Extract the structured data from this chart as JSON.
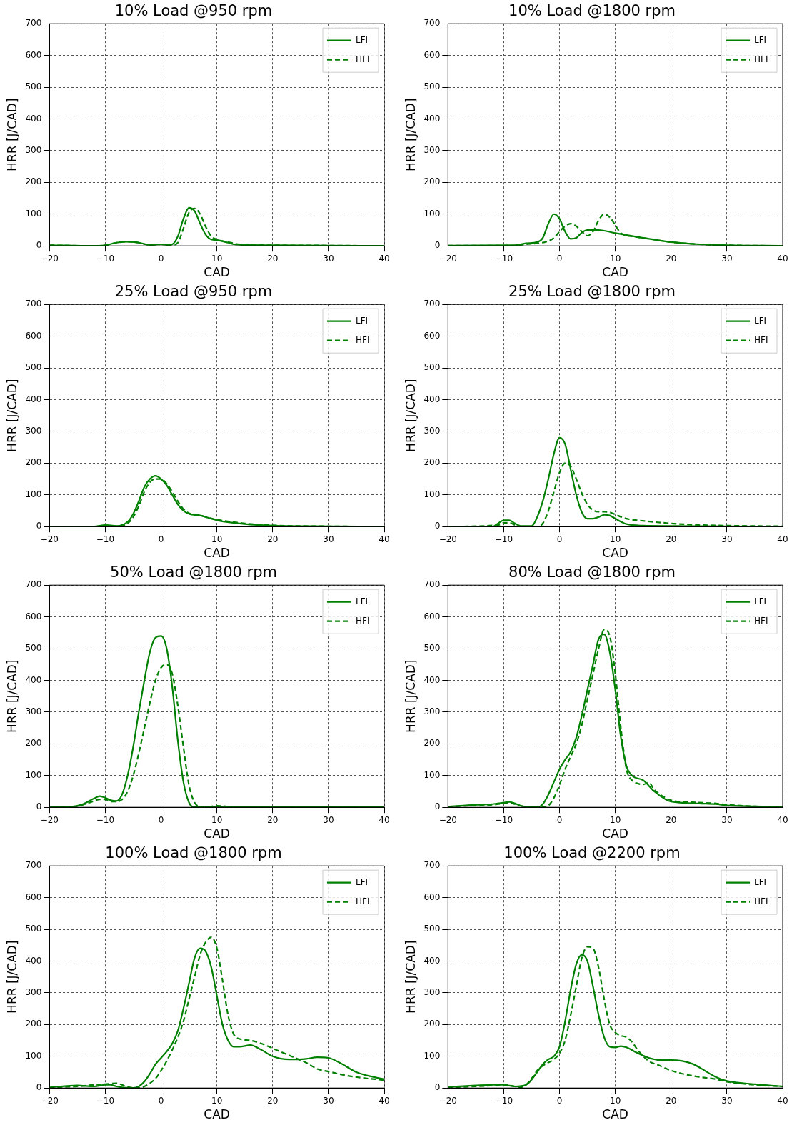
{
  "chart_data": [
    {
      "type": "line",
      "title": "10% Load @950 rpm",
      "xlabel": "CAD",
      "ylabel": "HRR [J/CAD]",
      "xlim": [
        -20,
        40
      ],
      "xticks": [
        -20,
        -10,
        0,
        10,
        20,
        30,
        40
      ],
      "ylim": [
        0,
        700
      ],
      "yticks": [
        0,
        100,
        200,
        300,
        400,
        500,
        600,
        700
      ],
      "grid": true,
      "legend": "top right",
      "series": [
        {
          "name": "LFI",
          "color": "#008000",
          "line_style": "solid",
          "x": [
            -20,
            -12,
            -10,
            -8,
            -6,
            -4,
            -2,
            0,
            1,
            2,
            3,
            4,
            5,
            6,
            7,
            8,
            9,
            10,
            12,
            13,
            15,
            20,
            30,
            40
          ],
          "values": [
            2,
            0,
            2,
            10,
            13,
            10,
            3,
            5,
            3,
            5,
            30,
            85,
            120,
            110,
            70,
            35,
            20,
            18,
            10,
            5,
            3,
            2,
            1,
            0
          ]
        },
        {
          "name": "HFI",
          "color": "#008000",
          "line_style": "dashed",
          "x": [
            -20,
            -12,
            -10,
            -8,
            -6,
            -4,
            -2,
            0,
            2,
            3,
            4,
            5,
            6,
            7,
            8,
            9,
            10,
            12,
            14,
            20,
            30,
            40
          ],
          "values": [
            2,
            0,
            2,
            10,
            13,
            10,
            3,
            5,
            3,
            10,
            55,
            105,
            118,
            100,
            60,
            30,
            20,
            12,
            5,
            2,
            1,
            0
          ]
        }
      ]
    },
    {
      "type": "line",
      "title": "10% Load @1800 rpm",
      "xlabel": "CAD",
      "ylabel": "HRR [J/CAD]",
      "xlim": [
        -20,
        40
      ],
      "xticks": [
        -20,
        -10,
        0,
        10,
        20,
        30,
        40
      ],
      "ylim": [
        0,
        700
      ],
      "yticks": [
        0,
        100,
        200,
        300,
        400,
        500,
        600,
        700
      ],
      "grid": true,
      "legend": "top right",
      "series": [
        {
          "name": "LFI",
          "color": "#008000",
          "line_style": "solid",
          "x": [
            -20,
            -8,
            -6,
            -4,
            -3,
            -2,
            -1,
            0,
            1,
            2,
            3,
            4,
            5,
            7,
            10,
            15,
            20,
            25,
            30,
            40
          ],
          "values": [
            1,
            2,
            8,
            12,
            25,
            70,
            100,
            85,
            45,
            22,
            25,
            42,
            50,
            50,
            40,
            25,
            12,
            5,
            2,
            0
          ]
        },
        {
          "name": "HFI",
          "color": "#008000",
          "line_style": "dashed",
          "x": [
            -20,
            -8,
            -6,
            -4,
            -2,
            -1,
            0,
            1,
            2,
            3,
            4,
            5,
            6,
            7,
            8,
            9,
            10,
            11,
            13,
            15,
            20,
            25,
            30,
            40
          ],
          "values": [
            1,
            1,
            5,
            8,
            15,
            25,
            45,
            62,
            70,
            62,
            45,
            32,
            45,
            80,
            100,
            90,
            65,
            40,
            30,
            25,
            12,
            5,
            2,
            0
          ]
        }
      ]
    },
    {
      "type": "line",
      "title": "25% Load @950 rpm",
      "xlabel": "CAD",
      "ylabel": "HRR [J/CAD]",
      "xlim": [
        -20,
        40
      ],
      "xticks": [
        -20,
        -10,
        0,
        10,
        20,
        30,
        40
      ],
      "ylim": [
        0,
        700
      ],
      "yticks": [
        0,
        100,
        200,
        300,
        400,
        500,
        600,
        700
      ],
      "grid": true,
      "legend": "top right",
      "series": [
        {
          "name": "LFI",
          "color": "#008000",
          "line_style": "solid",
          "x": [
            -20,
            -12,
            -10,
            -8,
            -6,
            -5,
            -4,
            -3,
            -2,
            -1,
            0,
            1,
            2,
            3,
            4,
            5,
            7,
            10,
            15,
            20,
            30,
            40
          ],
          "values": [
            0,
            0,
            5,
            2,
            15,
            40,
            80,
            125,
            150,
            160,
            150,
            130,
            100,
            70,
            50,
            40,
            35,
            20,
            8,
            3,
            1,
            0
          ]
        },
        {
          "name": "HFI",
          "color": "#008000",
          "line_style": "dashed",
          "x": [
            -20,
            -12,
            -10,
            -8,
            -6,
            -5,
            -4,
            -3,
            -2,
            -1,
            0,
            1,
            2,
            3,
            4,
            5,
            7,
            10,
            15,
            20,
            30,
            40
          ],
          "values": [
            0,
            0,
            4,
            1,
            10,
            30,
            65,
            110,
            140,
            150,
            150,
            135,
            110,
            80,
            55,
            42,
            35,
            22,
            10,
            4,
            1,
            0
          ]
        }
      ]
    },
    {
      "type": "line",
      "title": "25% Load @1800 rpm",
      "xlabel": "CAD",
      "ylabel": "HRR [J/CAD]",
      "xlim": [
        -20,
        40
      ],
      "xticks": [
        -20,
        -10,
        0,
        10,
        20,
        30,
        40
      ],
      "ylim": [
        0,
        700
      ],
      "yticks": [
        0,
        100,
        200,
        300,
        400,
        500,
        600,
        700
      ],
      "grid": true,
      "legend": "top right",
      "series": [
        {
          "name": "LFI",
          "color": "#008000",
          "line_style": "solid",
          "x": [
            -20,
            -12,
            -11,
            -10,
            -9,
            -8,
            -7,
            -5,
            -4,
            -3,
            -2,
            -1,
            0,
            1,
            2,
            3,
            4,
            5,
            6,
            7,
            8,
            9,
            10,
            12,
            15,
            20,
            30,
            40
          ],
          "values": [
            0,
            0,
            10,
            20,
            20,
            10,
            2,
            2,
            30,
            80,
            150,
            230,
            280,
            260,
            180,
            100,
            45,
            25,
            25,
            30,
            37,
            35,
            25,
            8,
            3,
            2,
            1,
            0
          ]
        },
        {
          "name": "HFI",
          "color": "#008000",
          "line_style": "dashed",
          "x": [
            -20,
            -11,
            -10,
            -9,
            -8,
            -7,
            -4,
            -3,
            -2,
            -1,
            0,
            1,
            2,
            3,
            4,
            5,
            6,
            7,
            8,
            9,
            10,
            12,
            15,
            20,
            25,
            30,
            40
          ],
          "values": [
            0,
            5,
            12,
            12,
            5,
            0,
            0,
            10,
            50,
            110,
            170,
            200,
            190,
            150,
            105,
            70,
            52,
            47,
            47,
            45,
            38,
            25,
            18,
            10,
            5,
            3,
            1
          ]
        }
      ]
    },
    {
      "type": "line",
      "title": "50% Load @1800 rpm",
      "xlabel": "CAD",
      "ylabel": "HRR [J/CAD]",
      "xlim": [
        -20,
        40
      ],
      "xticks": [
        -20,
        -10,
        0,
        10,
        20,
        30,
        40
      ],
      "ylim": [
        0,
        700
      ],
      "yticks": [
        0,
        100,
        200,
        300,
        400,
        500,
        600,
        700
      ],
      "grid": true,
      "legend": "top right",
      "series": [
        {
          "name": "LFI",
          "color": "#008000",
          "line_style": "solid",
          "x": [
            -20,
            -16,
            -14,
            -12,
            -11,
            -10,
            -9,
            -8,
            -7,
            -6,
            -5,
            -4,
            -3,
            -2,
            -1,
            0,
            1,
            2,
            3,
            4,
            5,
            6,
            40
          ],
          "values": [
            0,
            2,
            10,
            28,
            35,
            30,
            22,
            20,
            40,
            100,
            190,
            300,
            400,
            490,
            535,
            540,
            500,
            380,
            210,
            80,
            15,
            0,
            0
          ]
        },
        {
          "name": "HFI",
          "color": "#008000",
          "line_style": "dashed",
          "x": [
            -20,
            -16,
            -14,
            -12,
            -11,
            -10,
            -9,
            -8,
            -7,
            -6,
            -5,
            -4,
            -3,
            -2,
            -1,
            0,
            1,
            2,
            3,
            4,
            5,
            6,
            7,
            8,
            10,
            12,
            13,
            40
          ],
          "values": [
            0,
            1,
            8,
            20,
            25,
            25,
            18,
            18,
            25,
            50,
            100,
            170,
            250,
            330,
            400,
            440,
            450,
            420,
            320,
            190,
            70,
            15,
            2,
            0,
            5,
            2,
            0,
            0
          ]
        }
      ]
    },
    {
      "type": "line",
      "title": "80% Load @1800 rpm",
      "xlabel": "CAD",
      "ylabel": "HRR [J/CAD]",
      "xlim": [
        -20,
        40
      ],
      "xticks": [
        -20,
        -10,
        0,
        10,
        20,
        30,
        40
      ],
      "ylim": [
        0,
        700
      ],
      "yticks": [
        0,
        100,
        200,
        300,
        400,
        500,
        600,
        700
      ],
      "grid": true,
      "legend": "top right",
      "series": [
        {
          "name": "LFI",
          "color": "#008000",
          "line_style": "solid",
          "x": [
            -20,
            -15,
            -12,
            -10,
            -9,
            -8,
            -7,
            -6,
            -4,
            -3,
            -2,
            -1,
            0,
            1,
            2,
            3,
            4,
            5,
            6,
            7,
            8,
            9,
            10,
            11,
            12,
            13,
            15,
            17,
            19,
            20,
            25,
            28,
            30,
            35,
            40
          ],
          "values": [
            2,
            8,
            10,
            15,
            17,
            12,
            5,
            2,
            0,
            10,
            40,
            80,
            120,
            150,
            175,
            220,
            290,
            370,
            450,
            530,
            545,
            490,
            370,
            220,
            130,
            100,
            85,
            50,
            25,
            18,
            12,
            10,
            6,
            3,
            1
          ]
        },
        {
          "name": "HFI",
          "color": "#008000",
          "line_style": "dashed",
          "x": [
            -20,
            -15,
            -12,
            -10,
            -9,
            -8,
            -7,
            -6,
            -3,
            -2,
            -1,
            0,
            1,
            2,
            3,
            4,
            5,
            6,
            7,
            8,
            9,
            10,
            11,
            12,
            13,
            14,
            15,
            16,
            17,
            19,
            20,
            25,
            28,
            30,
            35,
            40
          ],
          "values": [
            2,
            6,
            8,
            12,
            14,
            10,
            5,
            1,
            0,
            5,
            30,
            70,
            120,
            160,
            200,
            260,
            340,
            420,
            500,
            560,
            540,
            420,
            250,
            120,
            85,
            75,
            72,
            78,
            55,
            30,
            22,
            15,
            12,
            8,
            3,
            1
          ]
        }
      ]
    },
    {
      "type": "line",
      "title": "100% Load @1800 rpm",
      "xlabel": "CAD",
      "ylabel": "HRR [J/CAD]",
      "xlim": [
        -20,
        40
      ],
      "xticks": [
        -20,
        -10,
        0,
        10,
        20,
        30,
        40
      ],
      "ylim": [
        0,
        700
      ],
      "yticks": [
        0,
        100,
        200,
        300,
        400,
        500,
        600,
        700
      ],
      "grid": true,
      "legend": "top right",
      "series": [
        {
          "name": "LFI",
          "color": "#008000",
          "line_style": "solid",
          "x": [
            -20,
            -15,
            -12,
            -10,
            -9,
            -8,
            -7,
            -5,
            -4,
            -3,
            -2,
            -1,
            0,
            1,
            2,
            3,
            4,
            5,
            6,
            7,
            8,
            9,
            10,
            11,
            12,
            13,
            14,
            16,
            18,
            20,
            23,
            26,
            28,
            30,
            32,
            35,
            38,
            40
          ],
          "values": [
            2,
            8,
            5,
            10,
            10,
            5,
            2,
            0,
            5,
            20,
            45,
            75,
            95,
            115,
            140,
            180,
            250,
            330,
            410,
            440,
            430,
            380,
            290,
            200,
            150,
            130,
            130,
            135,
            120,
            100,
            90,
            92,
            97,
            95,
            80,
            50,
            35,
            28
          ]
        },
        {
          "name": "HFI",
          "color": "#008000",
          "line_style": "dashed",
          "x": [
            -20,
            -15,
            -12,
            -10,
            -8,
            -7,
            -6,
            -4,
            -3,
            -2,
            -1,
            0,
            1,
            2,
            3,
            4,
            5,
            6,
            7,
            8,
            9,
            10,
            11,
            12,
            13,
            14,
            16,
            18,
            20,
            22,
            24,
            26,
            28,
            30,
            33,
            36,
            40
          ],
          "values": [
            2,
            5,
            10,
            12,
            15,
            10,
            3,
            0,
            5,
            15,
            30,
            55,
            85,
            120,
            160,
            210,
            280,
            350,
            420,
            460,
            475,
            440,
            340,
            230,
            170,
            155,
            150,
            140,
            125,
            110,
            95,
            80,
            60,
            52,
            40,
            32,
            25
          ]
        }
      ]
    },
    {
      "type": "line",
      "title": "100% Load @2200 rpm",
      "xlabel": "CAD",
      "ylabel": "HRR [J/CAD]",
      "xlim": [
        -20,
        40
      ],
      "xticks": [
        -20,
        -10,
        0,
        10,
        20,
        30,
        40
      ],
      "ylim": [
        0,
        700
      ],
      "yticks": [
        0,
        100,
        200,
        300,
        400,
        500,
        600,
        700
      ],
      "grid": true,
      "legend": "top right",
      "series": [
        {
          "name": "LFI",
          "color": "#008000",
          "line_style": "solid",
          "x": [
            -20,
            -15,
            -12,
            -10,
            -8,
            -6,
            -4,
            -3,
            -2,
            -1,
            0,
            1,
            2,
            3,
            4,
            5,
            6,
            7,
            8,
            9,
            10,
            11,
            12,
            14,
            16,
            18,
            20,
            22,
            24,
            26,
            28,
            30,
            35,
            40
          ],
          "values": [
            3,
            8,
            10,
            10,
            5,
            10,
            50,
            75,
            90,
            100,
            130,
            210,
            310,
            390,
            420,
            400,
            320,
            230,
            160,
            130,
            128,
            132,
            128,
            110,
            95,
            88,
            88,
            85,
            75,
            55,
            35,
            22,
            12,
            5
          ]
        },
        {
          "name": "HFI",
          "color": "#008000",
          "line_style": "dashed",
          "x": [
            -20,
            -15,
            -12,
            -10,
            -8,
            -7,
            -6,
            -5,
            -4,
            -3,
            -2,
            -1,
            0,
            1,
            2,
            3,
            4,
            5,
            6,
            7,
            8,
            9,
            10,
            11,
            12,
            13,
            14,
            15,
            16,
            18,
            20,
            22,
            25,
            28,
            30,
            35,
            40
          ],
          "values": [
            2,
            5,
            8,
            10,
            5,
            2,
            10,
            30,
            55,
            70,
            80,
            90,
            110,
            150,
            230,
            320,
            410,
            445,
            440,
            380,
            280,
            200,
            175,
            165,
            160,
            145,
            120,
            100,
            85,
            70,
            55,
            45,
            35,
            28,
            20,
            10,
            5
          ]
        }
      ]
    }
  ]
}
